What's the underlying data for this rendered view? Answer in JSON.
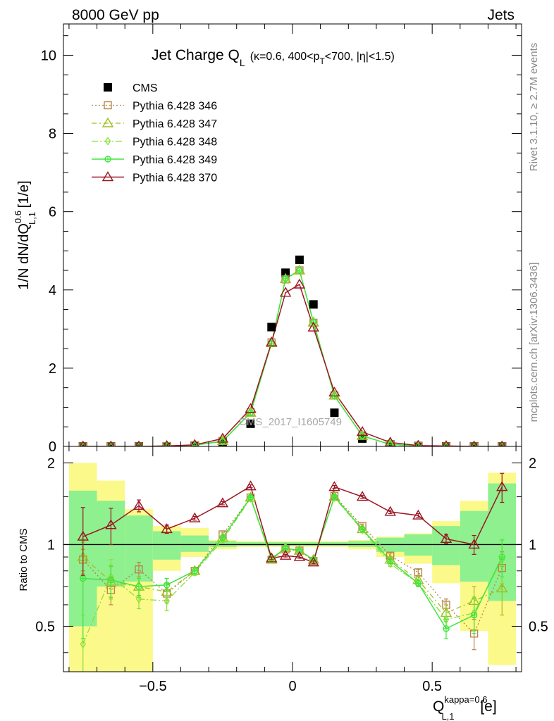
{
  "header": {
    "left": "8000 GeV pp",
    "right": "Jets"
  },
  "side_labels": {
    "rivet": "Rivet 3.1.10, ≥ 2.7M events",
    "mcplots": "mcplots.cern.ch [arXiv:1306.3436]"
  },
  "watermark": "CMS_2017_I1605749",
  "colors": {
    "data": "#000000",
    "p346": "#b8864a",
    "p347": "#9fbf1f",
    "p348": "#8be03a",
    "p349": "#3ee63e",
    "p370": "#9b1522",
    "band_inner": "#8ef08e",
    "band_outer": "#fbf98a"
  },
  "chart_data": [
    {
      "type": "scatter",
      "title": "Jet Charge Q_L (κ=0.6, 400<p_T<700, |η|<1.5)",
      "title_parts": {
        "main": "Jet Charge Q",
        "main_sub": "L",
        "k": "(κ=0.6, 400<p",
        "k_sub": "T",
        "k_rest": "<700, |η|<1.5)"
      },
      "ylabel_parts": {
        "a": "1/N dN/dQ",
        "sup": "0.6",
        "sub": "L,1",
        "b": " [1/e]"
      },
      "xlim": [
        -0.82,
        0.82
      ],
      "ylim": [
        0,
        10.8
      ],
      "y_ticks": [
        0,
        2,
        4,
        6,
        8,
        10
      ],
      "y_tick_labels": [
        "0",
        "2",
        "4",
        "6",
        "8",
        "10"
      ],
      "x": [
        -0.75,
        -0.65,
        -0.55,
        -0.45,
        -0.35,
        -0.25,
        -0.15,
        -0.075,
        -0.025,
        0.025,
        0.075,
        0.15,
        0.25,
        0.35,
        0.45,
        0.55,
        0.65,
        0.75
      ],
      "legend_position": "top-left",
      "series": [
        {
          "name": "CMS",
          "key": "cms",
          "marker": "square",
          "values": [
            0.0,
            0.0,
            0.0,
            0.0,
            0.02,
            0.12,
            0.58,
            3.05,
            4.44,
            4.77,
            3.63,
            0.86,
            0.2,
            0.05,
            0.01,
            0.0,
            0.0,
            0.0
          ]
        },
        {
          "name": "Pythia 6.428 346",
          "key": "p346",
          "marker": "square-open",
          "values": [
            0.0,
            0.0,
            0.0,
            0.01,
            0.03,
            0.14,
            0.87,
            2.66,
            4.27,
            4.5,
            3.16,
            1.3,
            0.28,
            0.05,
            0.01,
            0.0,
            0.0,
            0.0
          ]
        },
        {
          "name": "Pythia 6.428 347",
          "key": "p347",
          "marker": "triangle-open",
          "values": [
            0.0,
            0.0,
            0.0,
            0.01,
            0.03,
            0.14,
            0.86,
            2.64,
            4.28,
            4.5,
            3.17,
            1.3,
            0.27,
            0.05,
            0.01,
            0.0,
            0.0,
            0.0
          ]
        },
        {
          "name": "Pythia 6.428 348",
          "key": "p348",
          "marker": "diamond-open",
          "values": [
            0.0,
            0.0,
            0.0,
            0.01,
            0.03,
            0.13,
            0.86,
            2.64,
            4.29,
            4.5,
            3.18,
            1.29,
            0.27,
            0.05,
            0.01,
            0.0,
            0.0,
            0.0
          ]
        },
        {
          "name": "Pythia 6.428 349",
          "key": "p349",
          "marker": "circle-cross",
          "values": [
            0.0,
            0.0,
            0.0,
            0.01,
            0.03,
            0.13,
            0.86,
            2.64,
            4.29,
            4.5,
            3.18,
            1.29,
            0.27,
            0.05,
            0.01,
            0.0,
            0.0,
            0.0
          ]
        },
        {
          "name": "Pythia 6.428 370",
          "key": "p370",
          "marker": "triangle-open",
          "values": [
            0.0,
            0.0,
            0.0,
            0.01,
            0.04,
            0.2,
            0.96,
            2.66,
            3.93,
            4.14,
            3.04,
            1.38,
            0.37,
            0.1,
            0.02,
            0.01,
            0.0,
            0.0
          ]
        }
      ]
    },
    {
      "type": "scatter",
      "ylabel": "Ratio to CMS",
      "xlabel_parts": {
        "a": "Q",
        "sup": "kappa=0.6",
        "sub": "L,1",
        "b": " [e]"
      },
      "xlim": [
        -0.82,
        0.82
      ],
      "ylim": [
        0.34,
        2.3
      ],
      "log_y": true,
      "y_ticks": [
        0.5,
        1,
        2
      ],
      "y_tick_labels": [
        "0.5",
        "1",
        "2"
      ],
      "x_ticks": [
        -0.5,
        0,
        0.5
      ],
      "x_tick_labels": [
        "−0.5",
        "0",
        "0.5"
      ],
      "x": [
        -0.75,
        -0.65,
        -0.55,
        -0.45,
        -0.35,
        -0.25,
        -0.15,
        -0.075,
        -0.025,
        0.025,
        0.075,
        0.15,
        0.25,
        0.35,
        0.45,
        0.55,
        0.65,
        0.75
      ],
      "bin_edges": [
        -0.8,
        -0.7,
        -0.6,
        -0.5,
        -0.4,
        -0.3,
        -0.2,
        -0.1,
        -0.05,
        0.0,
        0.05,
        0.1,
        0.2,
        0.3,
        0.4,
        0.5,
        0.6,
        0.7,
        0.8
      ],
      "band_inner": {
        "low": [
          0.5,
          0.7,
          0.73,
          0.88,
          0.94,
          0.98,
          0.99,
          0.99,
          0.99,
          0.99,
          0.99,
          0.99,
          0.98,
          0.94,
          0.91,
          0.84,
          0.73,
          0.62
        ],
        "high": [
          1.58,
          1.45,
          1.28,
          1.12,
          1.08,
          1.03,
          1.02,
          1.02,
          1.02,
          1.02,
          1.02,
          1.02,
          1.03,
          1.06,
          1.09,
          1.17,
          1.33,
          1.68
        ]
      },
      "band_outer": {
        "low": [
          0.3,
          0.3,
          0.34,
          0.8,
          0.9,
          0.96,
          0.98,
          0.98,
          0.98,
          0.98,
          0.98,
          0.98,
          0.96,
          0.9,
          0.85,
          0.72,
          0.48,
          0.36
        ],
        "high": [
          2.0,
          1.72,
          1.35,
          1.17,
          1.15,
          1.04,
          1.03,
          1.03,
          1.03,
          1.03,
          1.03,
          1.03,
          1.04,
          1.07,
          1.1,
          1.22,
          1.45,
          1.84
        ]
      },
      "series": [
        {
          "name": "Pythia 6.428 346",
          "key": "p346",
          "marker": "square-open",
          "values": [
            0.88,
            0.68,
            0.81,
            0.66,
            0.8,
            1.09,
            1.49,
            0.88,
            0.96,
            0.95,
            0.87,
            1.51,
            1.17,
            0.91,
            0.79,
            0.6,
            0.47,
            0.82
          ],
          "err": [
            0.08,
            0.08,
            0.05,
            0.05,
            0.02,
            0.02,
            0.02,
            0.01,
            0.01,
            0.01,
            0.01,
            0.02,
            0.02,
            0.02,
            0.02,
            0.03,
            0.06,
            0.12
          ]
        },
        {
          "name": "Pythia 6.428 347",
          "key": "p347",
          "marker": "triangle-open",
          "values": [
            0.9,
            0.73,
            0.7,
            0.67,
            0.8,
            1.06,
            1.49,
            0.88,
            0.97,
            0.95,
            0.88,
            1.5,
            1.14,
            0.88,
            0.74,
            0.56,
            0.62,
            0.69
          ],
          "err": [
            0.12,
            0.1,
            0.06,
            0.05,
            0.02,
            0.02,
            0.02,
            0.01,
            0.01,
            0.01,
            0.01,
            0.02,
            0.02,
            0.02,
            0.02,
            0.04,
            0.08,
            0.14
          ]
        },
        {
          "name": "Pythia 6.428 348",
          "key": "p348",
          "marker": "diamond-open",
          "values": [
            0.43,
            0.76,
            0.63,
            0.62,
            0.79,
            1.04,
            1.48,
            0.88,
            0.97,
            0.95,
            0.88,
            1.49,
            1.13,
            0.85,
            0.72,
            0.53,
            0.56,
            0.88
          ],
          "err": [
            0.12,
            0.12,
            0.05,
            0.05,
            0.02,
            0.02,
            0.02,
            0.01,
            0.01,
            0.01,
            0.01,
            0.02,
            0.02,
            0.02,
            0.02,
            0.04,
            0.08,
            0.16
          ]
        },
        {
          "name": "Pythia 6.428 349",
          "key": "p349",
          "marker": "circle-cross",
          "values": [
            0.75,
            0.74,
            0.7,
            0.71,
            0.8,
            1.06,
            1.49,
            0.89,
            0.97,
            0.95,
            0.88,
            1.5,
            1.14,
            0.87,
            0.72,
            0.49,
            0.55,
            0.9
          ],
          "err": [
            0.3,
            0.1,
            0.05,
            0.04,
            0.02,
            0.02,
            0.02,
            0.01,
            0.01,
            0.01,
            0.01,
            0.02,
            0.02,
            0.02,
            0.02,
            0.04,
            0.08,
            0.14
          ]
        },
        {
          "name": "Pythia 6.428 370",
          "key": "p370",
          "marker": "triangle-open",
          "values": [
            1.07,
            1.18,
            1.39,
            1.14,
            1.25,
            1.42,
            1.64,
            0.89,
            0.91,
            0.9,
            0.86,
            1.63,
            1.5,
            1.32,
            1.28,
            1.05,
            1.0,
            1.63
          ],
          "err": [
            0.3,
            0.18,
            0.07,
            0.04,
            0.02,
            0.02,
            0.02,
            0.01,
            0.01,
            0.01,
            0.01,
            0.02,
            0.02,
            0.02,
            0.02,
            0.04,
            0.08,
            0.2
          ]
        }
      ]
    }
  ]
}
